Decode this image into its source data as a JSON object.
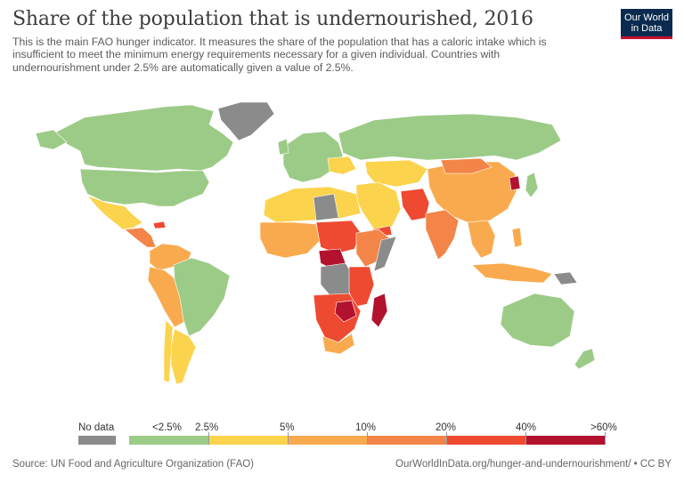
{
  "header": {
    "title": "Share of the population that is undernourished, 2016",
    "subtitle": "This is the main FAO hunger indicator. It measures the share of the population that has a caloric intake which is insufficient to meet the minimum energy requirements necessary for a given individual. Countries with undernourishment under 2.5% are automatically given a value of 2.5%."
  },
  "logo": {
    "line1": "Our World",
    "line2": "in Data"
  },
  "legend": {
    "nodata_label": "No data",
    "nodata_color": "#8b8b8b",
    "labels": [
      "<2.5%",
      "2.5%",
      "5%",
      "10%",
      "20%",
      "40%",
      ">60%"
    ],
    "colors": [
      "#9ccb87",
      "#fcd34d",
      "#f9aa4e",
      "#f28547",
      "#ee4a31",
      "#b3122e"
    ]
  },
  "footer": {
    "source": "Source: UN Food and Agriculture Organization (FAO)",
    "url": "OurWorldInData.org/hunger-and-undernourishment/ • CC BY"
  }
}
